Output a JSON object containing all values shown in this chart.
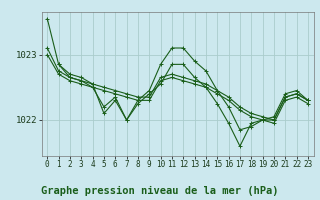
{
  "bg_color": "#cce8ee",
  "grid_color": "#aacccc",
  "line_color": "#1a5e1a",
  "title": "Graphe pression niveau de la mer (hPa)",
  "title_fontsize": 7.5,
  "ylabel_fontsize": 6.5,
  "xlabel_fontsize": 5.5,
  "yticks": [
    1022,
    1023
  ],
  "ylim": [
    1021.45,
    1023.65
  ],
  "xlim": [
    -0.5,
    23.5
  ],
  "xticks": [
    0,
    1,
    2,
    3,
    4,
    5,
    6,
    7,
    8,
    9,
    10,
    11,
    12,
    13,
    14,
    15,
    16,
    17,
    18,
    19,
    20,
    21,
    22,
    23
  ],
  "series": [
    {
      "x": [
        0,
        1,
        2,
        3,
        4,
        5,
        6,
        7,
        8,
        9,
        10,
        11,
        12,
        13,
        14,
        15,
        16,
        17,
        18,
        19,
        20,
        21,
        22,
        23
      ],
      "y": [
        1023.55,
        1022.85,
        1022.65,
        1022.6,
        1022.5,
        1022.2,
        1022.35,
        1022.0,
        1022.3,
        1022.45,
        1022.85,
        1023.1,
        1023.1,
        1022.9,
        1022.75,
        1022.45,
        1022.2,
        1021.85,
        1021.9,
        1022.0,
        1022.05,
        1022.4,
        1022.45,
        1022.3
      ]
    },
    {
      "x": [
        0,
        1,
        2,
        3,
        4,
        5,
        6,
        7,
        8,
        9,
        10,
        11,
        12,
        13,
        14,
        15,
        16,
        17,
        18,
        19,
        20,
        21,
        22,
        23
      ],
      "y": [
        1023.1,
        1022.75,
        1022.65,
        1022.6,
        1022.55,
        1022.5,
        1022.45,
        1022.4,
        1022.35,
        1022.35,
        1022.65,
        1022.7,
        1022.65,
        1022.6,
        1022.55,
        1022.45,
        1022.35,
        1022.2,
        1022.1,
        1022.05,
        1022.0,
        1022.35,
        1022.4,
        1022.3
      ]
    },
    {
      "x": [
        0,
        1,
        2,
        3,
        4,
        5,
        6,
        7,
        8,
        9,
        10,
        11,
        12,
        13,
        14,
        15,
        16,
        17,
        18,
        19,
        20,
        21,
        22,
        23
      ],
      "y": [
        1023.0,
        1022.7,
        1022.6,
        1022.55,
        1022.5,
        1022.45,
        1022.4,
        1022.35,
        1022.3,
        1022.3,
        1022.6,
        1022.65,
        1022.6,
        1022.55,
        1022.5,
        1022.4,
        1022.3,
        1022.15,
        1022.05,
        1022.0,
        1021.95,
        1022.3,
        1022.35,
        1022.25
      ]
    },
    {
      "x": [
        1,
        2,
        3,
        4,
        5,
        6,
        7,
        8,
        9,
        10,
        11,
        12,
        13,
        14,
        15,
        16,
        17,
        18,
        19,
        20,
        21,
        22,
        23
      ],
      "y": [
        1022.85,
        1022.7,
        1022.65,
        1022.55,
        1022.1,
        1022.3,
        1022.0,
        1022.25,
        1022.4,
        1022.55,
        1022.85,
        1022.85,
        1022.65,
        1022.5,
        1022.25,
        1021.95,
        1021.6,
        1021.95,
        1022.0,
        1022.0,
        1022.35,
        1022.4,
        1022.3
      ]
    }
  ],
  "marker": "+",
  "markersize": 3,
  "linewidth": 0.8
}
